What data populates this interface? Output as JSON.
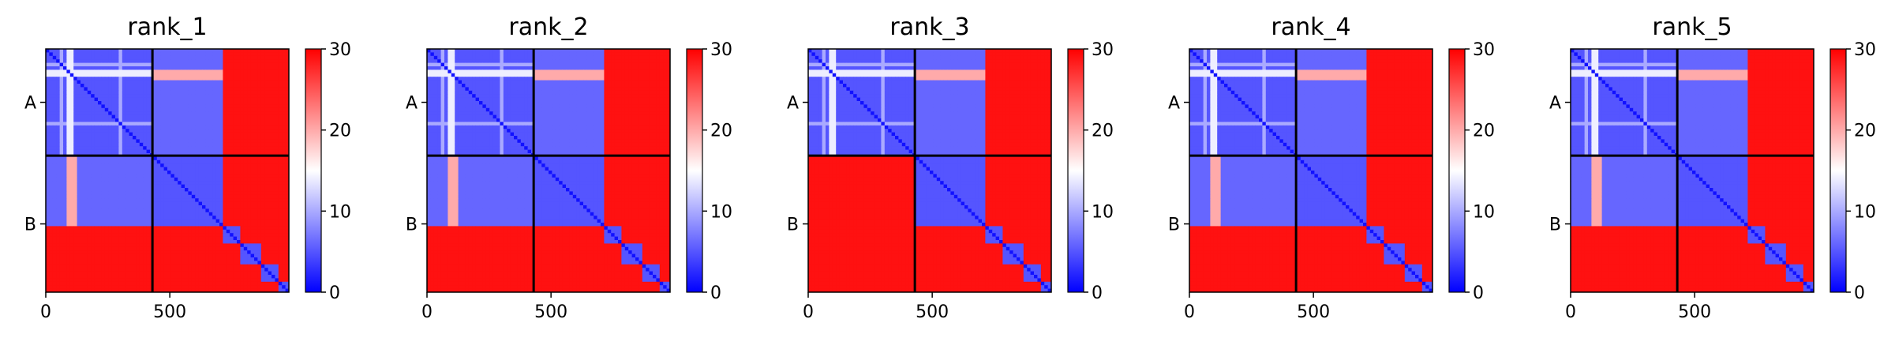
{
  "chart_data": {
    "type": "heatmap",
    "description_of_value": "predicted aligned error matrix per model",
    "x_ticks": [
      0,
      500
    ],
    "x_range": [
      0,
      980
    ],
    "y_tick_labels": [
      "A",
      "B"
    ],
    "chain_boundary": 430,
    "colorbar": {
      "range": [
        0,
        30
      ],
      "ticks": [
        0,
        10,
        20,
        30
      ],
      "colors": {
        "low": "#0000ff",
        "mid": "#ffffff",
        "high": "#ff0000"
      }
    },
    "panels": [
      {
        "title": "rank_1"
      },
      {
        "title": "rank_2"
      },
      {
        "title": "rank_3"
      },
      {
        "title": "rank_4"
      },
      {
        "title": "rank_5"
      }
    ]
  }
}
